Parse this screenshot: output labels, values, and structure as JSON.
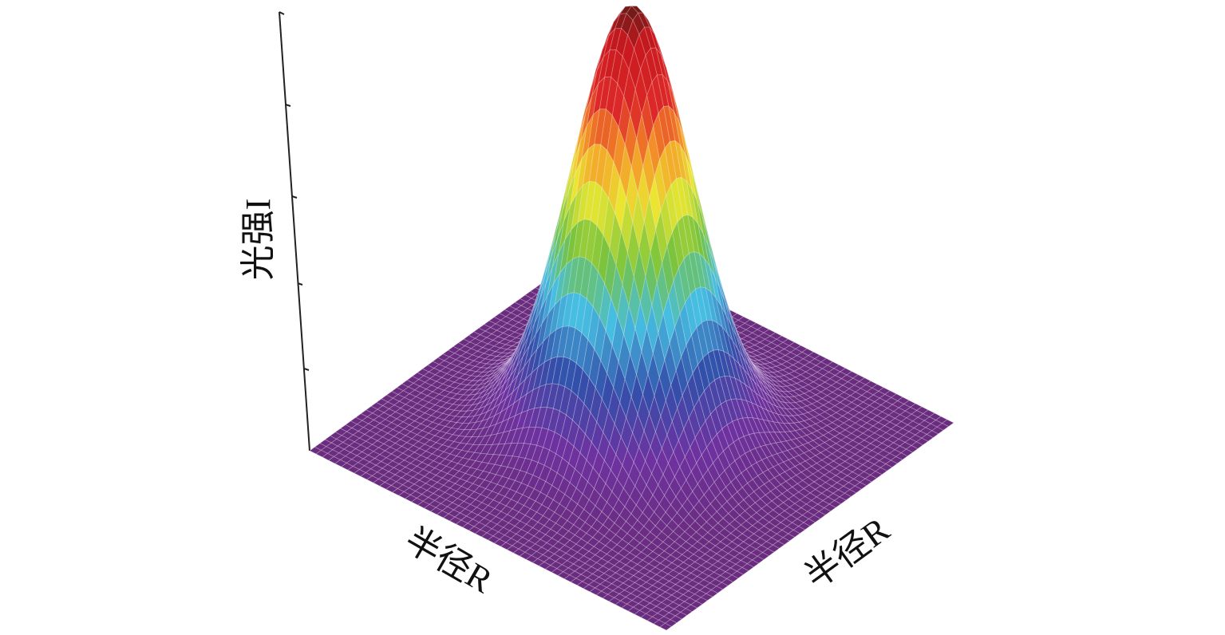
{
  "chart_data": {
    "type": "surface",
    "z_label": "光强I",
    "x_label": "半径R",
    "y_label": "半径R"
  }
}
